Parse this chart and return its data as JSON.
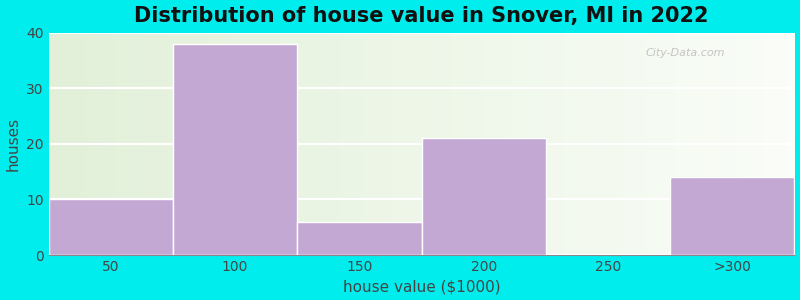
{
  "title": "Distribution of house value in Snover, MI in 2022",
  "xlabel": "house value ($1000)",
  "ylabel": "houses",
  "bin_labels": [
    "50",
    "100",
    "150",
    "200",
    "250",
    ">300"
  ],
  "values": [
    10,
    38,
    6,
    21,
    0,
    14
  ],
  "bar_color": "#C4A8D4",
  "bar_edgecolor": "#FFFFFF",
  "background_outer": "#00EDED",
  "plot_bg_left": "#E2F0DA",
  "plot_bg_right": "#F8FCF6",
  "ylim": [
    0,
    40
  ],
  "yticks": [
    0,
    10,
    20,
    30,
    40
  ],
  "grid_color": "#FFFFFF",
  "grid_linewidth": 1.5,
  "title_fontsize": 15,
  "axis_fontsize": 11,
  "tick_fontsize": 10,
  "watermark": "City-Data.com"
}
